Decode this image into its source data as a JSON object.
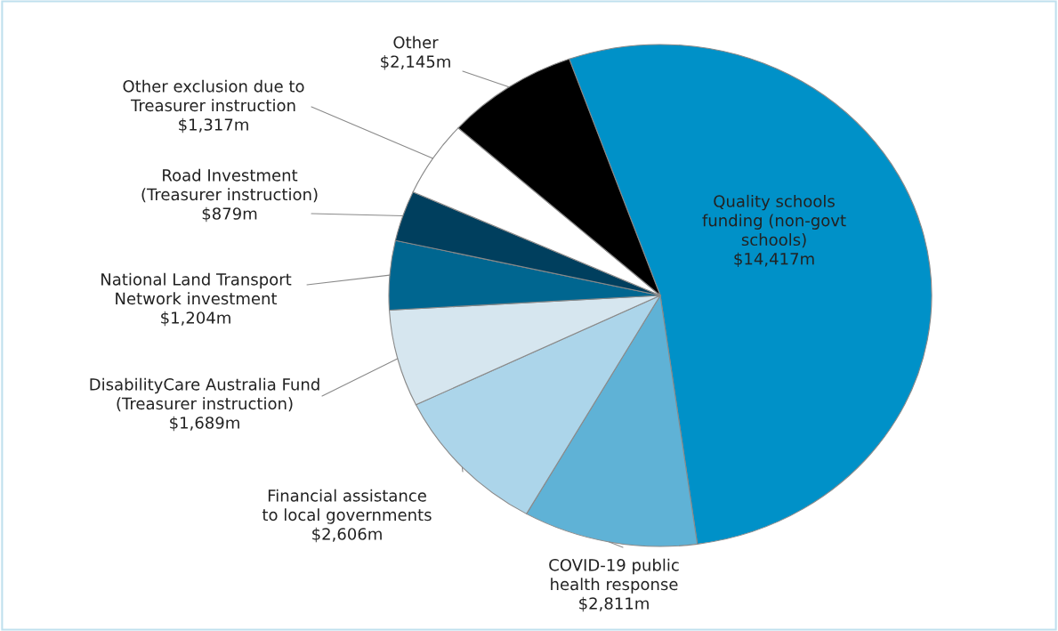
{
  "chart_data": {
    "type": "pie",
    "categories": [
      "Quality schools\nfunding (non-govt\nschools)",
      "COVID-19 public\nhealth response",
      "Financial assistance\nto local governments",
      "DisabilityCare Australia Fund\n(Treasurer instruction)",
      "National Land Transport\nNetwork investment",
      "Road Investment\n(Treasurer instruction)",
      "Other exclusion due to\nTreasurer instruction",
      "Other"
    ],
    "values": [
      14417,
      2811,
      2606,
      1689,
      1204,
      879,
      1317,
      2145
    ],
    "value_labels": [
      "$14,417m",
      "$2,811m",
      "$2,606m",
      "$1,689m",
      "$1,204m",
      "$879m",
      "$1,317m",
      "$2,145m"
    ],
    "colors": [
      "#0091c8",
      "#5fb2d6",
      "#acd5ea",
      "#d6e6ef",
      "#006690",
      "#003f5e",
      "#ffffff",
      "#000000"
    ]
  }
}
